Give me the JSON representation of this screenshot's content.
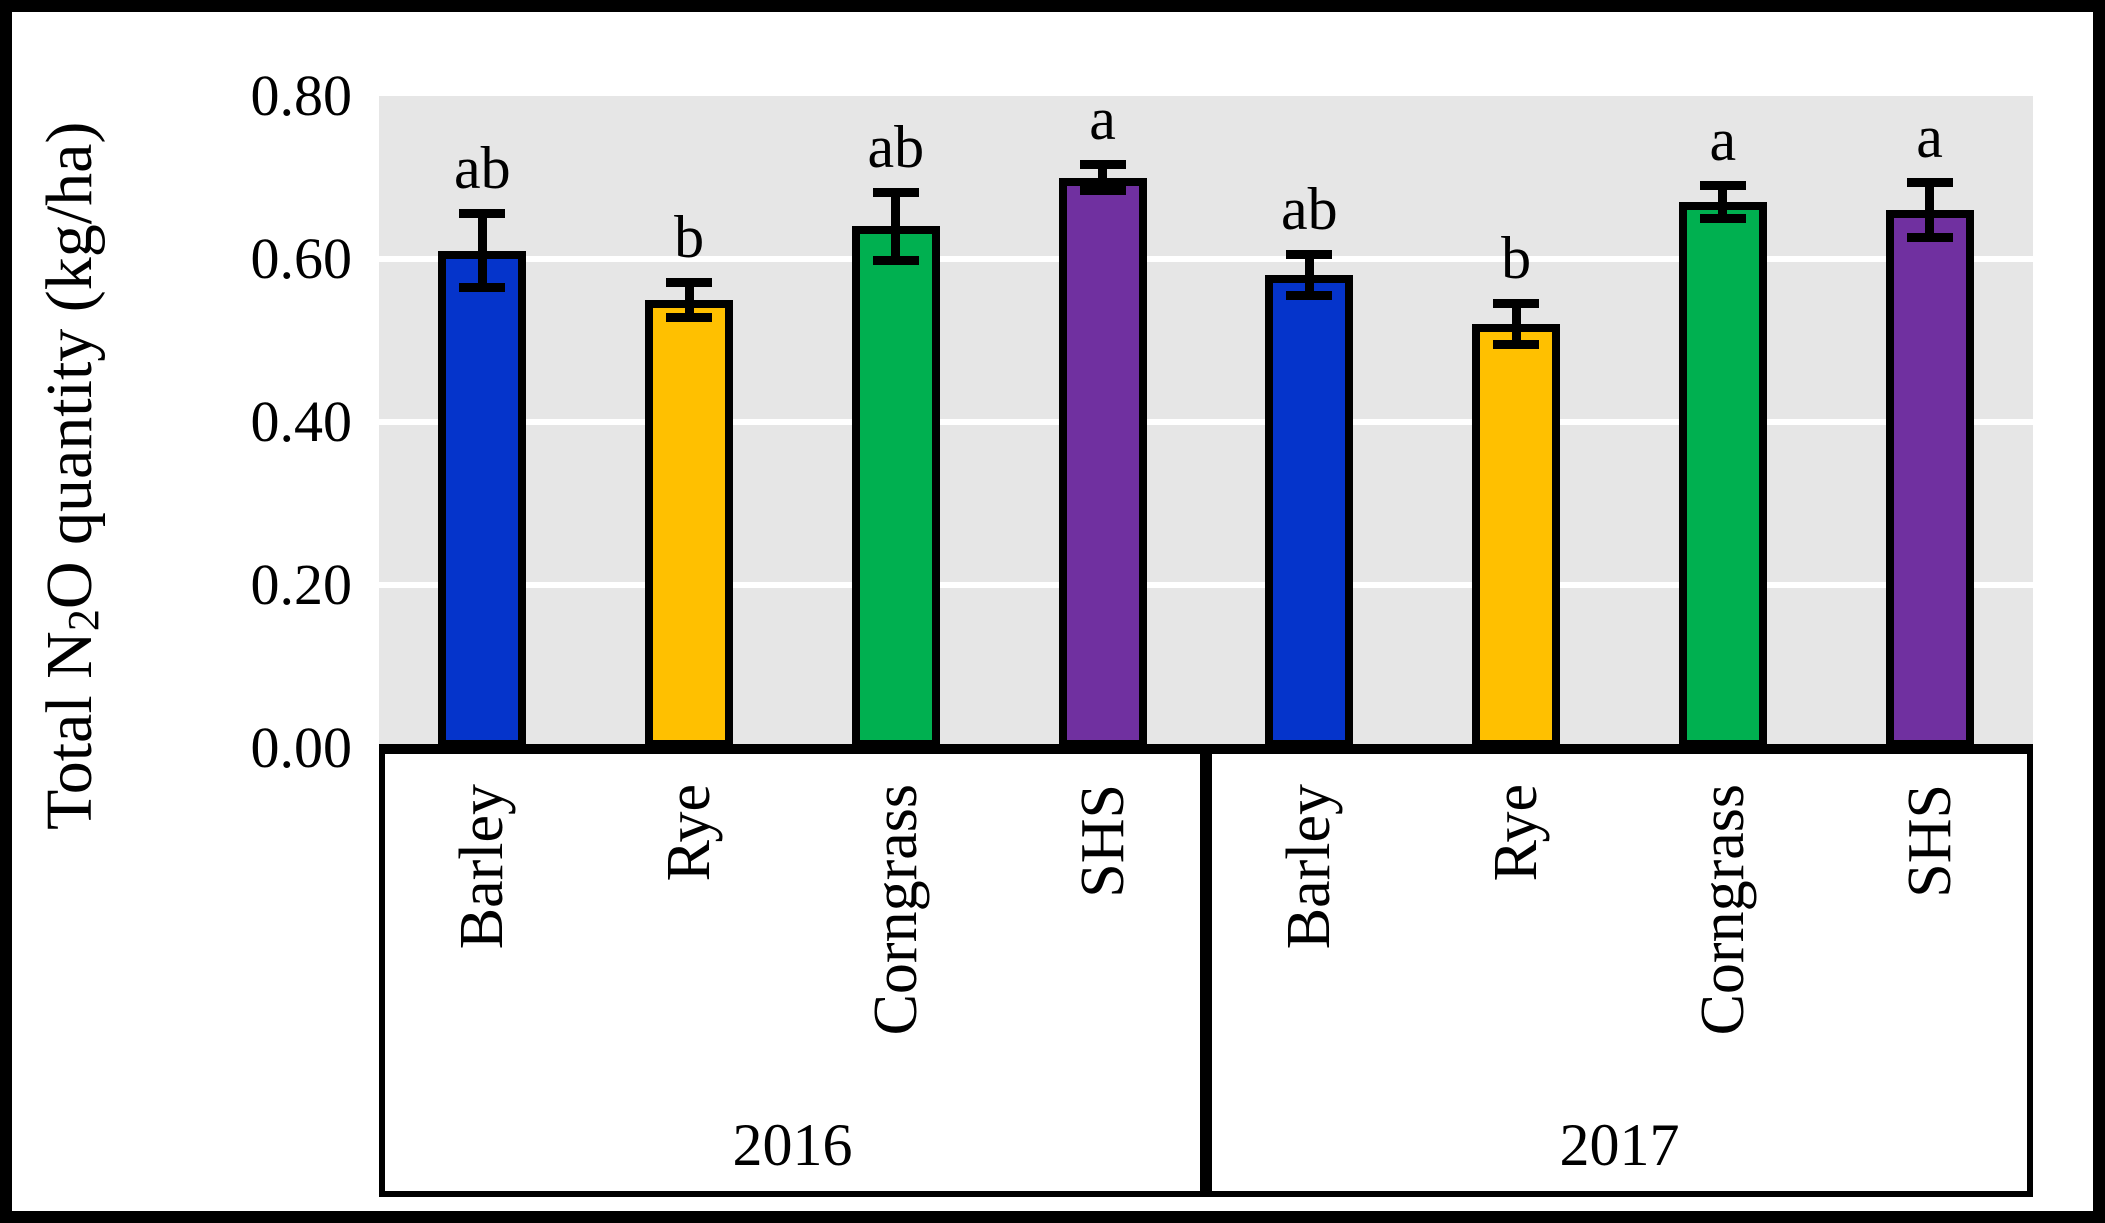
{
  "chart_data": {
    "type": "bar",
    "title": "",
    "ylabel": {
      "prefix": "Total N",
      "sub": "2",
      "suffix": "O quantity (kg/ha)"
    },
    "xlabel": "",
    "ylim": [
      0,
      0.8
    ],
    "ytick_labels": [
      "0.80",
      "0.60",
      "0.40",
      "0.20",
      "0.00"
    ],
    "ytick_values": [
      0.8,
      0.6,
      0.4,
      0.2,
      0.0
    ],
    "gridline_values": [
      0.2,
      0.4,
      0.6
    ],
    "grid": "horizontal-white-on-gray",
    "legend_position": "none",
    "plot_background": "#E6E6E6",
    "gridline_color": "#FFFFFF",
    "bar_border_color": "#000000",
    "error_bar_color": "#000000",
    "categories": [
      "Barley",
      "Rye",
      "Corngrass",
      "SHS"
    ],
    "category_colors": {
      "Barley": "#0534CB",
      "Rye": "#FFC000",
      "Corngrass": "#00B050",
      "SHS": "#7030A0"
    },
    "groups": [
      {
        "label": "2016",
        "bars": [
          {
            "category": "Barley",
            "value": 0.61,
            "error": 0.046,
            "letter": "ab"
          },
          {
            "category": "Rye",
            "value": 0.55,
            "error": 0.022,
            "letter": "b"
          },
          {
            "category": "Corngrass",
            "value": 0.64,
            "error": 0.042,
            "letter": "ab"
          },
          {
            "category": "SHS",
            "value": 0.7,
            "error": 0.016,
            "letter": "a"
          }
        ]
      },
      {
        "label": "2017",
        "bars": [
          {
            "category": "Barley",
            "value": 0.58,
            "error": 0.026,
            "letter": "ab"
          },
          {
            "category": "Rye",
            "value": 0.52,
            "error": 0.026,
            "letter": "b"
          },
          {
            "category": "Corngrass",
            "value": 0.67,
            "error": 0.021,
            "letter": "a"
          },
          {
            "category": "SHS",
            "value": 0.66,
            "error": 0.034,
            "letter": "a"
          }
        ]
      }
    ]
  }
}
